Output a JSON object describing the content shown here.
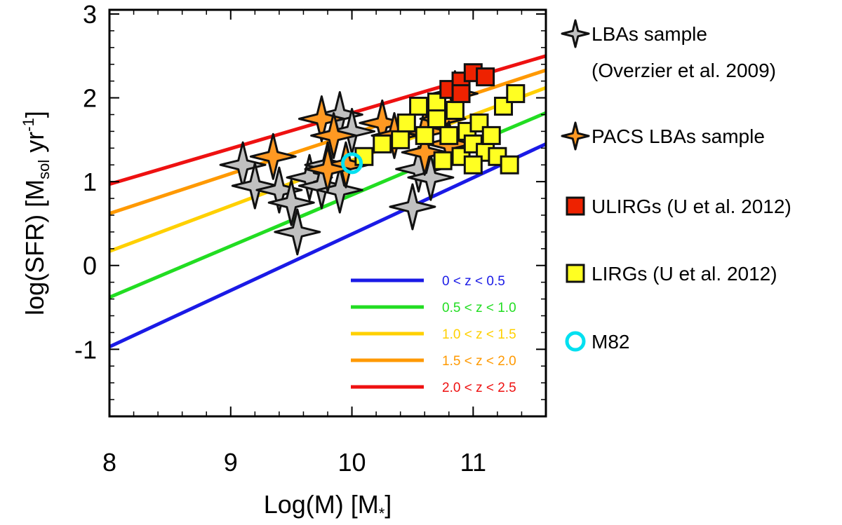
{
  "chart_data": {
    "type": "scatter",
    "title": "",
    "xlabel": "Log(M) [M*]",
    "xlabel_parts": {
      "main": "Log(M) [M",
      "sub": "*",
      "end": "]"
    },
    "ylabel": "log(SFR) [Msol yr-1]",
    "ylabel_parts": {
      "a": "log(SFR) [M",
      "sub": "sol",
      "b": " yr",
      "sup": "-1",
      "c": "]"
    },
    "xlim": [
      8,
      11.6
    ],
    "ylim": [
      -1.8,
      3.05
    ],
    "xticks": [
      8,
      9,
      10,
      11
    ],
    "xtick_labels": [
      "8",
      "9",
      "10",
      "11"
    ],
    "yticks": [
      -1,
      0,
      1,
      2,
      3
    ],
    "ytick_labels": [
      "-1",
      "0",
      "1",
      "2",
      "3"
    ],
    "x_minor_step": 0.2,
    "y_minor_step": 0.2,
    "lines": [
      {
        "label": "0 < z < 0.5",
        "color": "#1a1ae6",
        "x": [
          8,
          11.6
        ],
        "y": [
          -0.97,
          1.45
        ]
      },
      {
        "label": "0.5 < z < 1.0",
        "color": "#22dd22",
        "x": [
          8,
          11.6
        ],
        "y": [
          -0.38,
          1.82
        ]
      },
      {
        "label": "1.0 < z < 1.5",
        "color": "#ffd000",
        "x": [
          8,
          11.6
        ],
        "y": [
          0.17,
          2.12
        ]
      },
      {
        "label": "1.5 < z < 2.0",
        "color": "#ff9900",
        "x": [
          8,
          11.6
        ],
        "y": [
          0.62,
          2.33
        ]
      },
      {
        "label": "2.0 < z < 2.5",
        "color": "#ee1111",
        "x": [
          8,
          11.6
        ],
        "y": [
          0.97,
          2.5
        ]
      }
    ],
    "series": [
      {
        "name": "LBAs sample (Overzier et al. 2009)",
        "marker": "star4",
        "color": "#c0c0c0",
        "points": [
          [
            9.1,
            1.2
          ],
          [
            9.2,
            0.95
          ],
          [
            9.4,
            0.9
          ],
          [
            9.5,
            0.75
          ],
          [
            9.55,
            0.4
          ],
          [
            9.65,
            1.05
          ],
          [
            9.75,
            0.95
          ],
          [
            9.9,
            0.9
          ],
          [
            9.8,
            1.2
          ],
          [
            9.9,
            1.8
          ],
          [
            10.0,
            1.6
          ],
          [
            10.55,
            1.15
          ],
          [
            10.65,
            1.05
          ],
          [
            10.5,
            0.7
          ]
        ]
      },
      {
        "name": "PACS LBAs sample",
        "marker": "star4",
        "color": "#ff9922",
        "points": [
          [
            9.35,
            1.3
          ],
          [
            9.75,
            1.75
          ],
          [
            9.85,
            1.55
          ],
          [
            9.95,
            1.2
          ],
          [
            9.8,
            1.15
          ],
          [
            10.25,
            1.7
          ],
          [
            10.35,
            1.55
          ],
          [
            10.6,
            1.6
          ],
          [
            10.75,
            1.75
          ],
          [
            10.85,
            2.05
          ],
          [
            10.6,
            1.35
          ],
          [
            10.8,
            1.45
          ]
        ]
      },
      {
        "name": "ULIRGs (U et al. 2012)",
        "marker": "square",
        "color": "#ee2200",
        "points": [
          [
            10.8,
            2.1
          ],
          [
            10.9,
            2.2
          ],
          [
            11.0,
            2.3
          ],
          [
            11.1,
            2.25
          ],
          [
            10.9,
            2.05
          ]
        ]
      },
      {
        "name": "LIRGs (U et al. 2012)",
        "marker": "square",
        "color": "#ffff22",
        "points": [
          [
            10.1,
            1.3
          ],
          [
            10.25,
            1.45
          ],
          [
            10.4,
            1.5
          ],
          [
            10.55,
            1.9
          ],
          [
            10.6,
            1.55
          ],
          [
            10.7,
            1.75
          ],
          [
            10.75,
            1.25
          ],
          [
            10.8,
            1.55
          ],
          [
            10.85,
            1.85
          ],
          [
            10.9,
            1.3
          ],
          [
            10.95,
            1.6
          ],
          [
            11.0,
            1.45
          ],
          [
            11.05,
            1.7
          ],
          [
            11.1,
            1.35
          ],
          [
            11.15,
            1.55
          ],
          [
            11.2,
            1.3
          ],
          [
            11.25,
            1.9
          ],
          [
            11.3,
            1.2
          ],
          [
            11.35,
            2.05
          ],
          [
            10.7,
            1.95
          ],
          [
            11.0,
            1.2
          ],
          [
            10.45,
            1.7
          ]
        ]
      },
      {
        "name": "M82",
        "marker": "circle",
        "color": "#00e0f0",
        "points": [
          [
            10.0,
            1.22
          ]
        ]
      }
    ],
    "legend": [
      {
        "label_line1": "LBAs sample",
        "label_line2": "(Overzier et al. 2009)",
        "marker": "star4",
        "color": "#c0c0c0"
      },
      {
        "label_line1": "PACS LBAs sample",
        "marker": "star4",
        "color": "#ff9922"
      },
      {
        "label_line1": "ULIRGs (U et al. 2012)",
        "marker": "square",
        "color": "#ee2200"
      },
      {
        "label_line1": "LIRGs (U et al. 2012)",
        "marker": "square",
        "color": "#ffff22"
      },
      {
        "label_line1": "M82",
        "marker": "circle",
        "color": "#00e0f0"
      }
    ]
  }
}
